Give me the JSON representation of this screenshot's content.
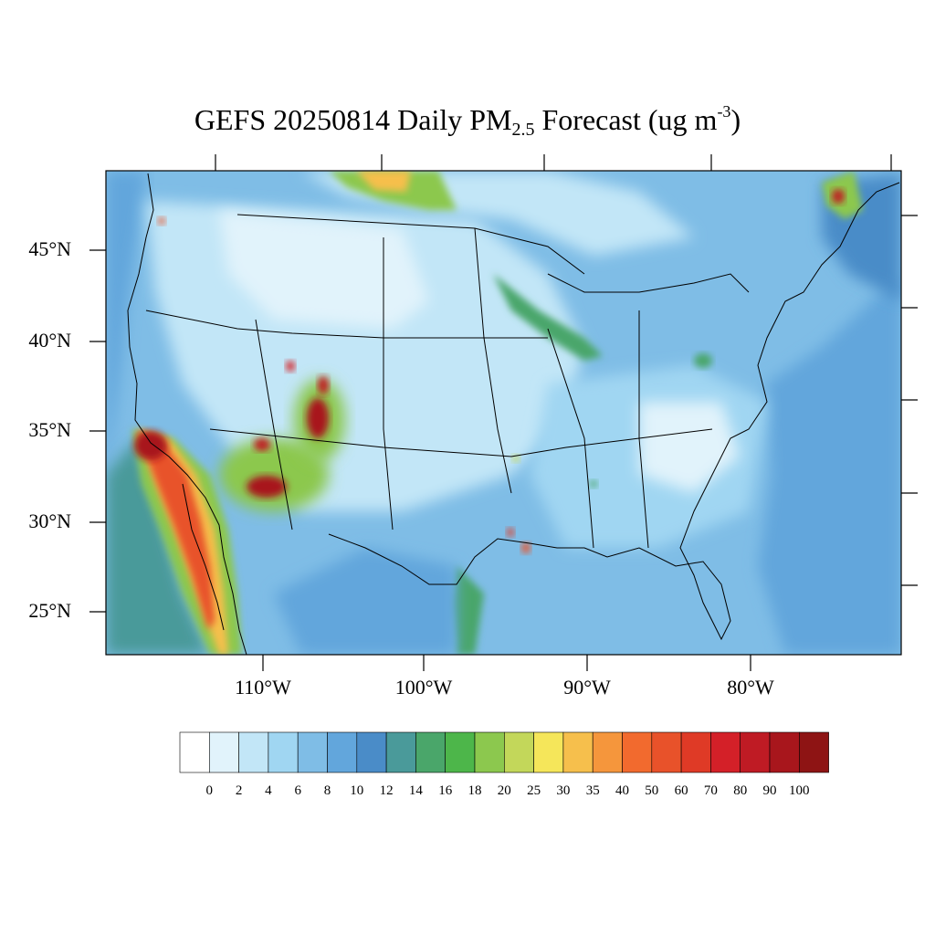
{
  "title": {
    "prefix": "GEFS 20250814 Daily PM",
    "subscript": "2.5",
    "middle": " Forecast (ug m",
    "superscript": "-3",
    "suffix": ")"
  },
  "axes": {
    "lat_labels": [
      "45°N",
      "40°N",
      "35°N",
      "30°N",
      "25°N"
    ],
    "lon_labels": [
      "110°W",
      "100°W",
      "90°W",
      "80°W"
    ]
  },
  "colorbar": {
    "colors": [
      "#ffffff",
      "#e1f3fb",
      "#c2e6f7",
      "#a0d6f2",
      "#7fbde6",
      "#62a6dc",
      "#4a8cc8",
      "#4a9a9a",
      "#4aa66a",
      "#4db64a",
      "#8cc84e",
      "#c3d75a",
      "#f5e65a",
      "#f6bf4c",
      "#f5963c",
      "#f26a2e",
      "#e8522a",
      "#df3a26",
      "#d42028",
      "#bf1b24",
      "#a8161c",
      "#8e1414"
    ],
    "tick_labels": [
      "0",
      "2",
      "4",
      "6",
      "8",
      "10",
      "12",
      "14",
      "16",
      "18",
      "20",
      "25",
      "30",
      "35",
      "40",
      "50",
      "60",
      "70",
      "80",
      "90",
      "100"
    ]
  }
}
